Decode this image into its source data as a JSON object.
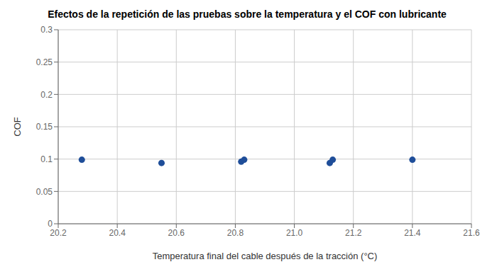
{
  "chart_data": {
    "type": "scatter",
    "title": "Efectos de la repetición de las pruebas sobre la temperatura y el COF con lubricante",
    "xlabel": "Temperatura final del cable después de la tracción (°C)",
    "ylabel": "COF",
    "x": [
      20.28,
      20.55,
      20.82,
      20.83,
      21.12,
      21.13,
      21.4
    ],
    "values": [
      0.099,
      0.094,
      0.096,
      0.099,
      0.094,
      0.099,
      0.099
    ],
    "color": "#1f4e99",
    "xlim": [
      20.2,
      21.6
    ],
    "ylim": [
      0,
      0.3
    ],
    "xticks": [
      20.2,
      20.4,
      20.6,
      20.8,
      {
        "value": 21,
        "label": "21.0"
      },
      21.2,
      21.4,
      21.6
    ],
    "yticks": [
      0,
      0.05,
      0.1,
      0.15,
      0.2,
      0.25,
      0.3
    ],
    "grid": true
  }
}
